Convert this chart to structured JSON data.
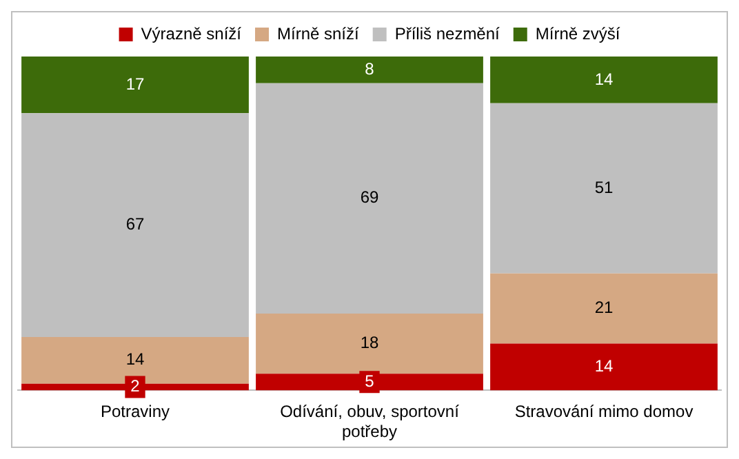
{
  "chart_data": {
    "type": "bar",
    "stacked": true,
    "data_labels": true,
    "legend": "top",
    "grid": false,
    "categories": [
      "Potraviny",
      "Odívání, obuv, sportovní potřeby",
      "Stravování mimo domov"
    ],
    "series": [
      {
        "name": "Výrazně sníží",
        "color": "#c00000",
        "values": [
          2,
          5,
          14
        ]
      },
      {
        "name": "Mírně sníží",
        "color": "#d5a883",
        "values": [
          14,
          18,
          21
        ]
      },
      {
        "name": "Příliš nezmění",
        "color": "#bfbfbf",
        "values": [
          67,
          69,
          51
        ]
      },
      {
        "name": "Mírně zvýší",
        "color": "#3d6b0a",
        "values": [
          17,
          8,
          14
        ]
      }
    ]
  }
}
